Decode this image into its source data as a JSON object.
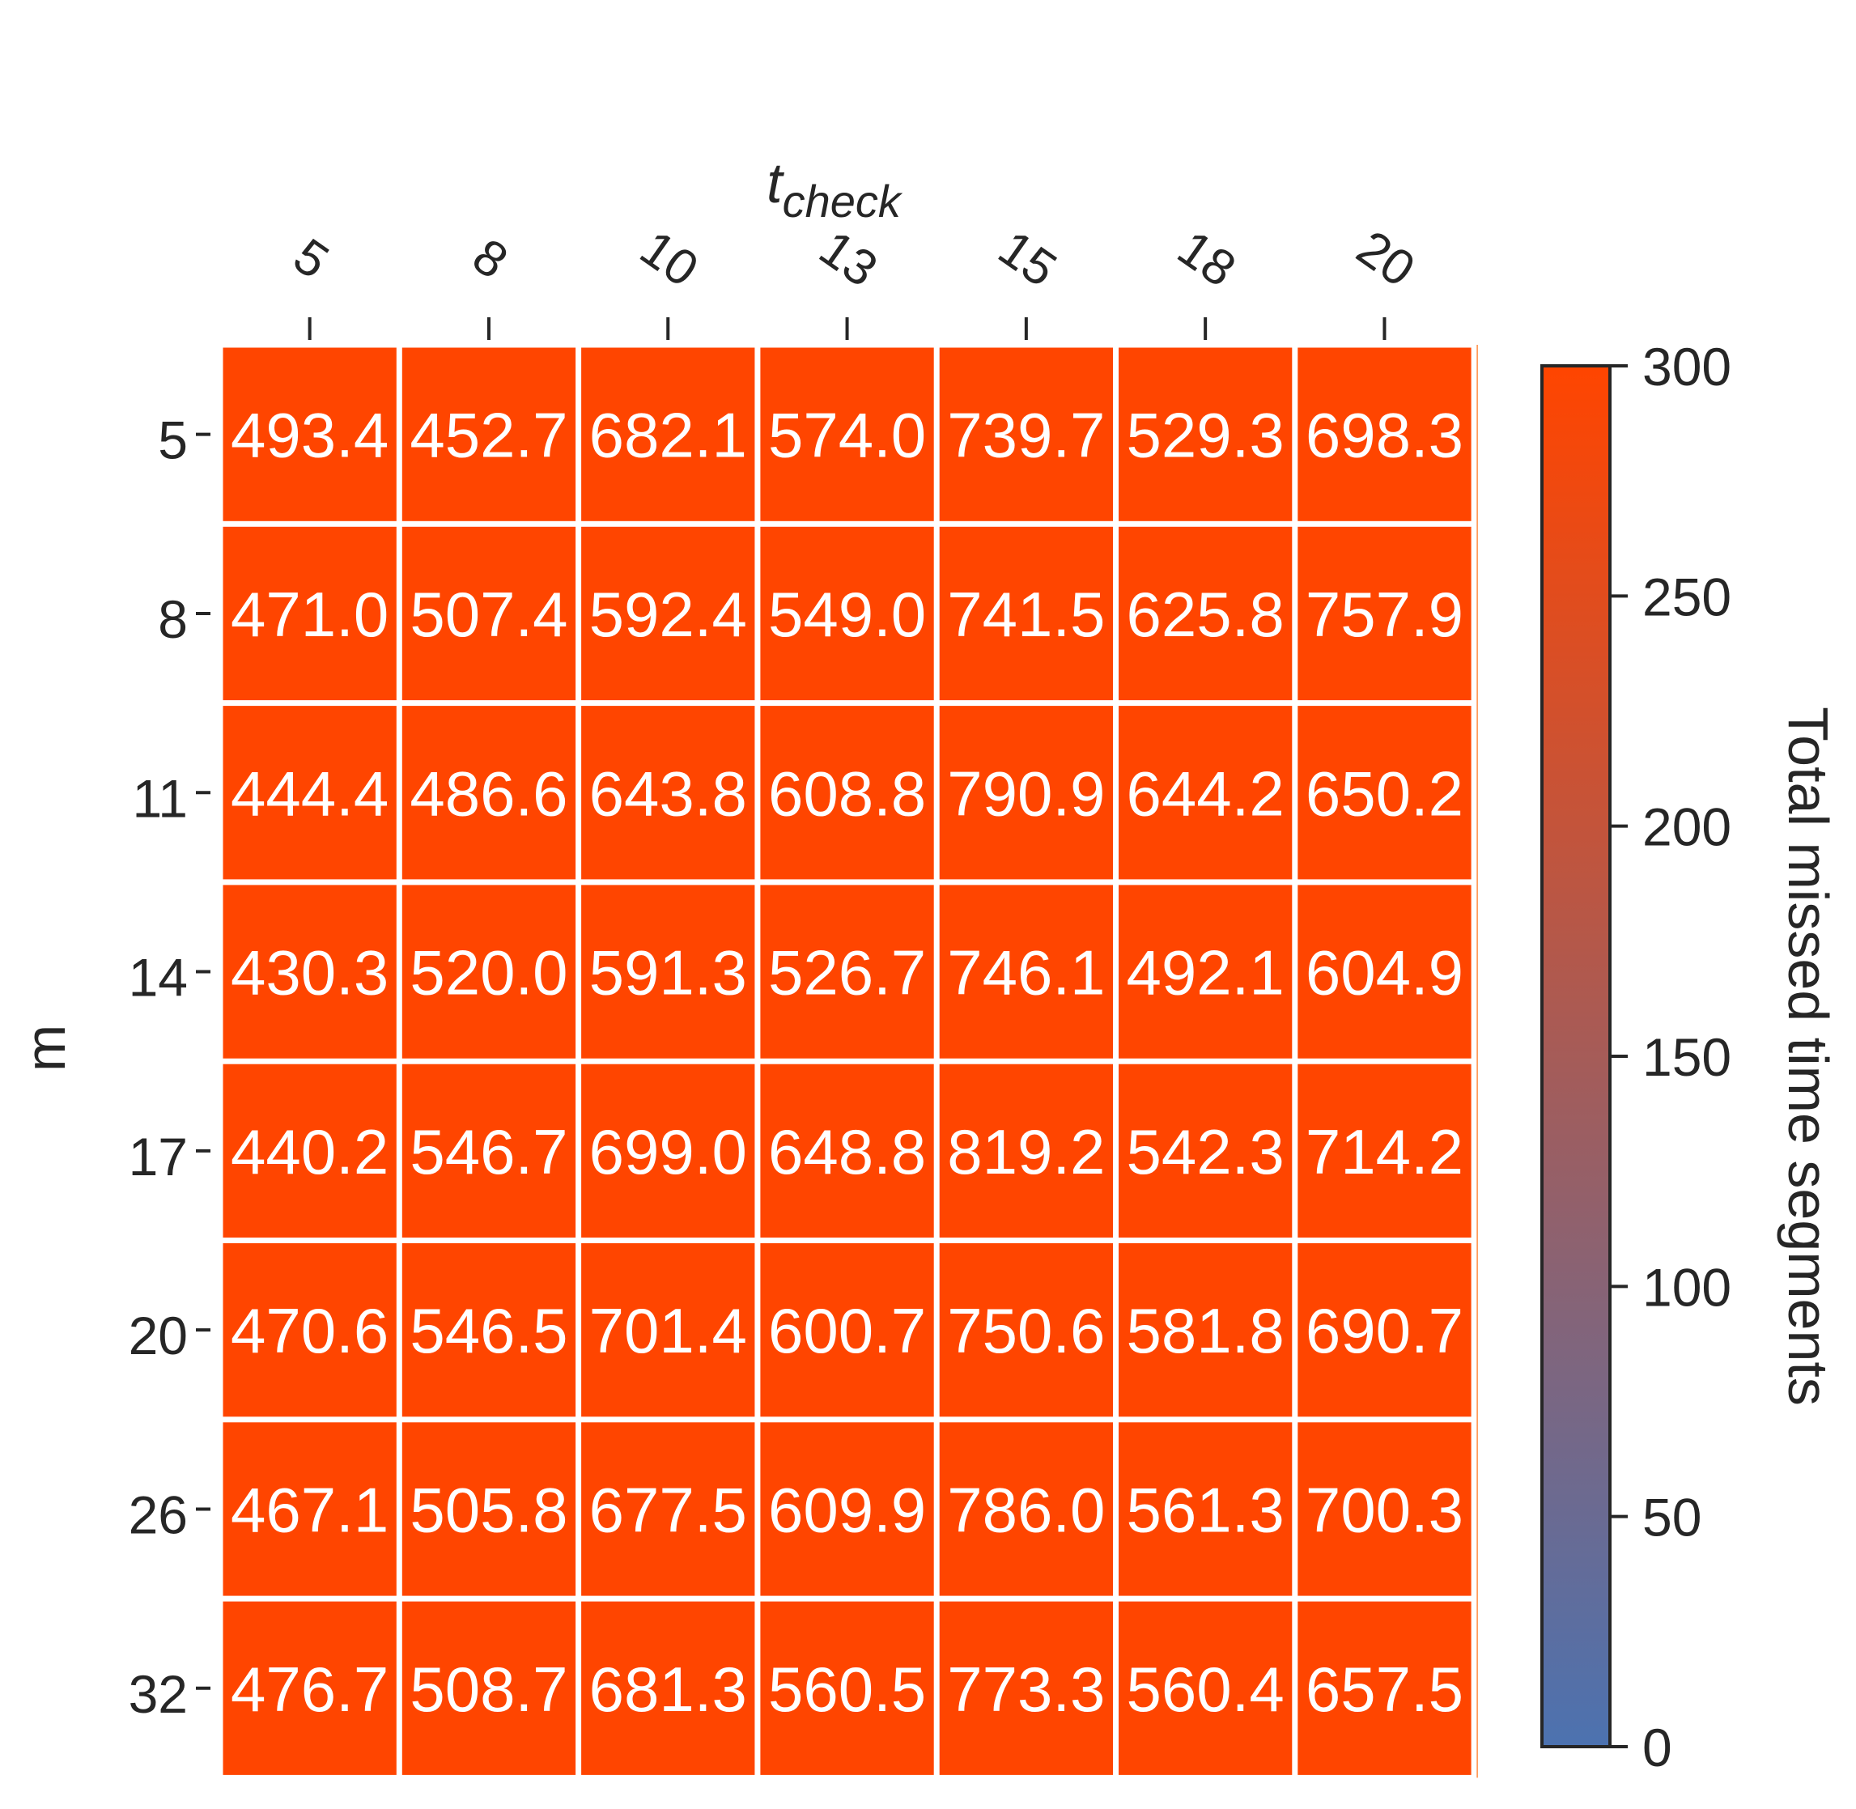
{
  "chart_data": {
    "type": "heatmap",
    "xlabel": "t_check",
    "ylabel": "m",
    "x_categories": [
      "5",
      "8",
      "10",
      "13",
      "15",
      "18",
      "20"
    ],
    "y_categories": [
      "5",
      "8",
      "11",
      "14",
      "17",
      "20",
      "26",
      "32"
    ],
    "values": [
      [
        493.4,
        452.7,
        682.1,
        574.0,
        739.7,
        529.3,
        698.3
      ],
      [
        471.0,
        507.4,
        592.4,
        549.0,
        741.5,
        625.8,
        757.9
      ],
      [
        444.4,
        486.6,
        643.8,
        608.8,
        790.9,
        644.2,
        650.2
      ],
      [
        430.3,
        520.0,
        591.3,
        526.7,
        746.1,
        492.1,
        604.9
      ],
      [
        440.2,
        546.7,
        699.0,
        648.8,
        819.2,
        542.3,
        714.2
      ],
      [
        470.6,
        546.5,
        701.4,
        600.7,
        750.6,
        581.8,
        690.7
      ],
      [
        467.1,
        505.8,
        677.5,
        609.9,
        786.0,
        561.3,
        700.3
      ],
      [
        476.7,
        508.7,
        681.3,
        560.5,
        773.3,
        560.4,
        657.5
      ]
    ],
    "value_labels": [
      [
        "493.4",
        "452.7",
        "682.1",
        "574.0",
        "739.7",
        "529.3",
        "698.3"
      ],
      [
        "471.0",
        "507.4",
        "592.4",
        "549.0",
        "741.5",
        "625.8",
        "757.9"
      ],
      [
        "444.4",
        "486.6",
        "643.8",
        "608.8",
        "790.9",
        "644.2",
        "650.2"
      ],
      [
        "430.3",
        "520.0",
        "591.3",
        "526.7",
        "746.1",
        "492.1",
        "604.9"
      ],
      [
        "440.2",
        "546.7",
        "699.0",
        "648.8",
        "819.2",
        "542.3",
        "714.2"
      ],
      [
        "470.6",
        "546.5",
        "701.4",
        "600.7",
        "750.6",
        "581.8",
        "690.7"
      ],
      [
        "467.1",
        "505.8",
        "677.5",
        "609.9",
        "786.0",
        "561.3",
        "700.3"
      ],
      [
        "476.7",
        "508.7",
        "681.3",
        "560.5",
        "773.3",
        "560.4",
        "657.5"
      ]
    ],
    "colorbar": {
      "label": "Total missed time segments",
      "range": [
        0,
        300
      ],
      "ticks": [
        "0",
        "50",
        "100",
        "150",
        "200",
        "250",
        "300"
      ],
      "colors": [
        "#4c72b0",
        "#ff4500"
      ]
    },
    "x_axis_position": "top",
    "x_tick_rotation": "rotated",
    "grid": false
  }
}
